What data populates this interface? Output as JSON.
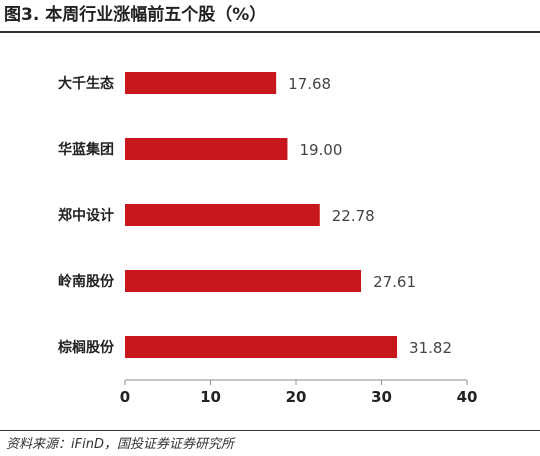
{
  "title": "图3. 本周行业涨幅前五个股（%）",
  "source": "资料来源：iFinD，国投证券证券研究所",
  "chart_data": {
    "type": "bar",
    "orientation": "horizontal",
    "categories": [
      "大千生态",
      "华蓝集团",
      "郑中设计",
      "岭南股份",
      "棕榈股份"
    ],
    "values": [
      17.68,
      19.0,
      22.78,
      27.61,
      31.82
    ],
    "value_labels": [
      "17.68",
      "19.00",
      "22.78",
      "27.61",
      "31.82"
    ],
    "xlim": [
      0,
      40
    ],
    "xticks": [
      0,
      10,
      20,
      30,
      40
    ],
    "bar_color": "#C8161D",
    "grid": false,
    "legend": "none"
  }
}
